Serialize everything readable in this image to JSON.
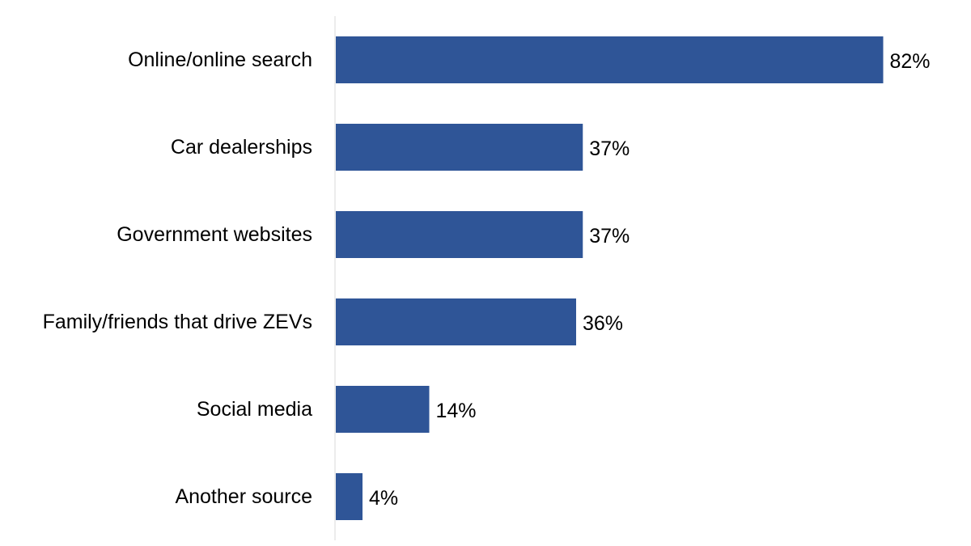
{
  "chart_data": {
    "type": "bar",
    "orientation": "horizontal",
    "categories": [
      "Online/online search",
      "Car dealerships",
      "Government websites",
      "Family/friends that drive ZEVs",
      "Social media",
      "Another source"
    ],
    "values": [
      82,
      37,
      37,
      36,
      14,
      4
    ],
    "value_labels": [
      "82%",
      "37%",
      "37%",
      "36%",
      "14%",
      "4%"
    ],
    "title": "",
    "xlabel": "",
    "ylabel": "",
    "xlim": [
      0,
      100
    ],
    "grid": false,
    "legend": "none",
    "bar_color": "#2F5597",
    "axis_color": "#D9D9D9"
  }
}
